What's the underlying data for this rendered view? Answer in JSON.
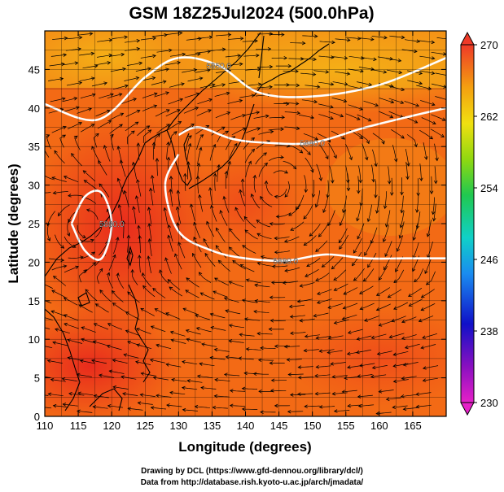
{
  "chart_data": {
    "type": "heatmap",
    "title": "GSM 18Z25Jul2024 (500.0hPa)",
    "xlabel": "Longitude (degrees)",
    "ylabel": "Latitude  (degrees)",
    "xlim": [
      110,
      170
    ],
    "ylim": [
      0,
      50
    ],
    "xticks": [
      "110",
      "115",
      "120",
      "125",
      "130",
      "135",
      "140",
      "145",
      "150",
      "155",
      "160",
      "165"
    ],
    "yticks": [
      "0",
      "5",
      "10",
      "15",
      "20",
      "25",
      "30",
      "35",
      "40",
      "45"
    ],
    "colorbar": {
      "min": 230,
      "max": 270,
      "ticks": [
        "270",
        "262",
        "254",
        "246",
        "238",
        "230"
      ]
    },
    "contours": [
      {
        "label": "5850.0",
        "lon": [
          110,
          118,
          125,
          130,
          136,
          142,
          150,
          160,
          170
        ],
        "lat": [
          40.5,
          38.5,
          44,
          46.5,
          45.5,
          42,
          41.5,
          43,
          46.5
        ]
      },
      {
        "label": "5880.0",
        "lon": [
          130,
          133,
          138,
          143,
          150,
          158,
          165,
          170
        ],
        "lat": [
          36.5,
          37.5,
          36,
          35.5,
          35.5,
          37.5,
          39,
          40
        ]
      },
      {
        "label": "5880.0",
        "lon": [
          130,
          128,
          130,
          135,
          140,
          146,
          152,
          158,
          164,
          170
        ],
        "lat": [
          34,
          30,
          24,
          21.5,
          20.5,
          20.2,
          21,
          20.5,
          20.5,
          20.5
        ]
      },
      {
        "label": "5880.0",
        "lon": [
          114,
          116,
          118.5,
          120,
          118.5,
          116,
          114
        ],
        "lat": [
          25,
          28.5,
          29,
          25,
          20.5,
          21.5,
          25
        ]
      }
    ],
    "grid": true
  },
  "credits": {
    "line1": "Drawing by DCL (https://www.gfd-dennou.org/library/dcl/)",
    "line2": "Data from http://database.rish.kyoto-u.ac.jp/arch/jmadata/"
  },
  "colors": {
    "field_warm": "#e8291e",
    "field_mid": "#f47a14",
    "field_cool": "#f3a815",
    "contour": "#ffffff",
    "vectors": "#000000",
    "coast": "#000000"
  }
}
